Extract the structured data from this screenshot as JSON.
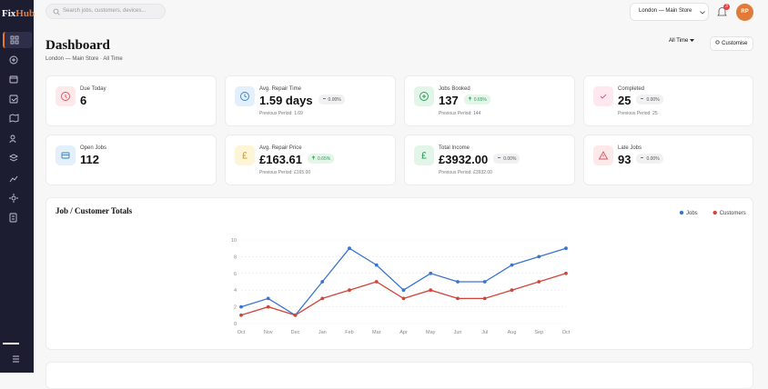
{
  "brand": {
    "part1": "Fix",
    "part2": "Hub"
  },
  "topbar": {
    "search_placeholder": "Search jobs, customers, devices...",
    "store": "London — Main Store",
    "notifications": "3",
    "avatar": "RP"
  },
  "header": {
    "title": "Dashboard",
    "subtitle": "London — Main Store · All Time",
    "period_button": "All Time",
    "customise_button": "Customise"
  },
  "cards": [
    {
      "label": "Due Today",
      "value": "6"
    },
    {
      "label": "Avg. Repair Time",
      "value": "1.59 days",
      "change": "0.00%",
      "previous": "Previous Period: 1.69"
    },
    {
      "label": "Jobs Booked",
      "value": "137",
      "change": "0.65%",
      "previous": "Previous Period: 144"
    },
    {
      "label": "Completed",
      "value": "25",
      "change": "0.00%",
      "previous": "Previous Period: 25"
    },
    {
      "label": "Open Jobs",
      "value": "112"
    },
    {
      "label": "Avg. Repair Price",
      "value": "£163.61",
      "change": "0.65%",
      "previous": "Previous Period: £165.00"
    },
    {
      "label": "Total Income",
      "value": "£3932.00",
      "change": "0.00%",
      "previous": "Previous Period: £3932.00"
    },
    {
      "label": "Late Jobs",
      "value": "93",
      "change": "0.00%"
    }
  ],
  "chart_data": {
    "type": "line",
    "title": "Job / Customer Totals",
    "categories": [
      "Oct",
      "Nov",
      "Dec",
      "Jan",
      "Feb",
      "Mar",
      "Apr",
      "May",
      "Jun",
      "Jul",
      "Aug",
      "Sep",
      "Oct"
    ],
    "series": [
      {
        "name": "Jobs",
        "color": "#3a73d0",
        "values": [
          2,
          3,
          1,
          5,
          9,
          7,
          4,
          6,
          5,
          5,
          7,
          8,
          9
        ]
      },
      {
        "name": "Customers",
        "color": "#d0453a",
        "values": [
          1,
          2,
          1,
          3,
          4,
          5,
          3,
          4,
          3,
          3,
          4,
          5,
          6
        ]
      }
    ],
    "ylim": [
      0,
      10
    ],
    "yticks": [
      0,
      2,
      4,
      6,
      8,
      10
    ],
    "grid": true,
    "legend": "top-right"
  }
}
